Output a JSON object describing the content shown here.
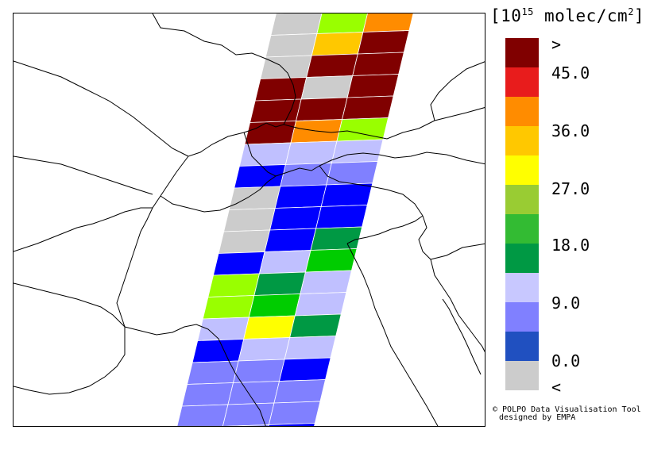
{
  "legend": {
    "title_prefix": "[10",
    "title_exp": "15",
    "title_unit": " molec/cm",
    "title_unit_exp": "2",
    "title_suffix": "]",
    "swatches": [
      "#800000",
      "#e81c1c",
      "#ff8c00",
      "#ffc800",
      "#ffff00",
      "#99cc33",
      "#33bb33",
      "#009944",
      "#c8c8ff",
      "#8080ff",
      "#2050c0",
      "#cccccc"
    ],
    "labels": [
      ">",
      "45.0",
      "36.0",
      "27.0",
      "18.0",
      "9.0",
      "0.0",
      "<"
    ]
  },
  "credit": {
    "line1": "© POLPO Data Visualisation Tool",
    "line2": "designed by EMPA"
  },
  "swath_colors": {
    "gray": "#cccccc",
    "darkred": "#800000",
    "orange": "#ff8c00",
    "gold": "#ffc800",
    "lime": "#99ff00",
    "green_bright": "#00cc00",
    "green_dark": "#009944",
    "blue": "#0000ff",
    "medium_blue": "#8080ff",
    "light_blue": "#c0c0ff",
    "yellow": "#ffff00"
  },
  "swath_grid": [
    [
      "gray",
      "lime",
      "orange"
    ],
    [
      "gray",
      "gold",
      "darkred"
    ],
    [
      "gray",
      "darkred",
      "darkred"
    ],
    [
      "darkred",
      "gray",
      "darkred"
    ],
    [
      "darkred",
      "darkred",
      "darkred"
    ],
    [
      "darkred",
      "orange",
      "lime"
    ],
    [
      "light_blue",
      "light_blue",
      "light_blue"
    ],
    [
      "blue",
      "medium_blue",
      "medium_blue"
    ],
    [
      "gray",
      "blue",
      "blue"
    ],
    [
      "gray",
      "blue",
      "blue"
    ],
    [
      "gray",
      "blue",
      "green_dark"
    ],
    [
      "blue",
      "light_blue",
      "green_bright"
    ],
    [
      "lime",
      "green_dark",
      "light_blue"
    ],
    [
      "lime",
      "green_bright",
      "light_blue"
    ],
    [
      "light_blue",
      "yellow",
      "green_dark"
    ],
    [
      "blue",
      "light_blue",
      "light_blue"
    ],
    [
      "medium_blue",
      "medium_blue",
      "blue"
    ],
    [
      "medium_blue",
      "medium_blue",
      "medium_blue"
    ],
    [
      "medium_blue",
      "medium_blue",
      "medium_blue"
    ],
    [
      "medium_blue",
      "medium_blue",
      "blue"
    ]
  ]
}
